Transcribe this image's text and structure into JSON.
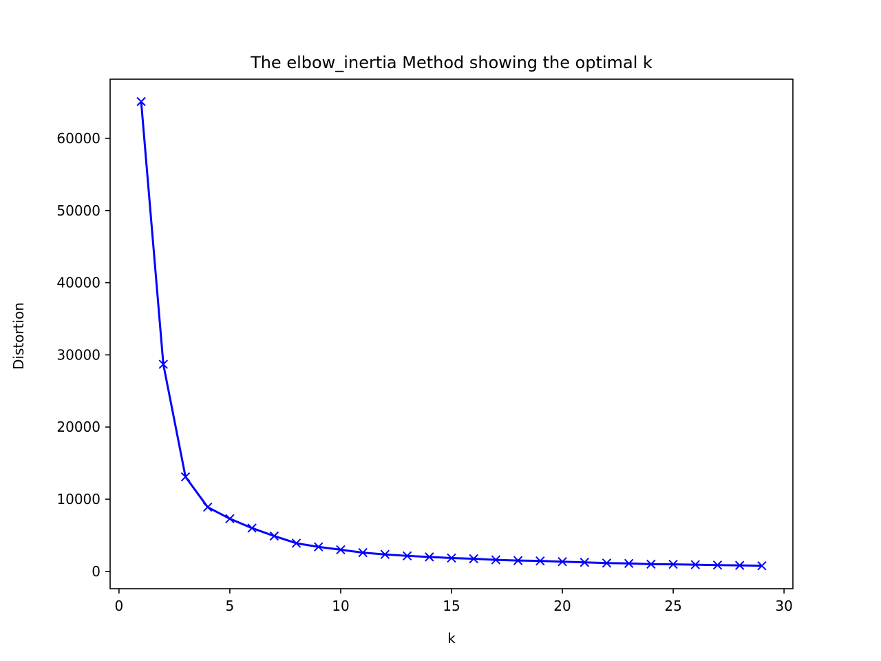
{
  "chart_data": {
    "type": "line",
    "title": "The elbow_inertia Method showing the optimal k",
    "xlabel": "k",
    "ylabel": "Distortion",
    "xlim": [
      -0.4,
      30.4
    ],
    "ylim": [
      -2400,
      68200
    ],
    "xticks": [
      0,
      5,
      10,
      15,
      20,
      25,
      30
    ],
    "yticks": [
      0,
      10000,
      20000,
      30000,
      40000,
      50000,
      60000
    ],
    "grid": false,
    "legend": "none",
    "series": [
      {
        "color": "#0000ff",
        "marker": "x",
        "x": [
          1,
          2,
          3,
          4,
          5,
          6,
          7,
          8,
          9,
          10,
          11,
          12,
          13,
          14,
          15,
          16,
          17,
          18,
          19,
          20,
          21,
          22,
          23,
          24,
          25,
          26,
          27,
          28,
          29
        ],
        "y": [
          65100,
          28700,
          13100,
          8900,
          7300,
          6000,
          4900,
          3900,
          3400,
          3000,
          2600,
          2350,
          2150,
          2000,
          1850,
          1750,
          1600,
          1500,
          1450,
          1350,
          1250,
          1150,
          1100,
          1000,
          980,
          930,
          870,
          830,
          780
        ]
      }
    ]
  }
}
